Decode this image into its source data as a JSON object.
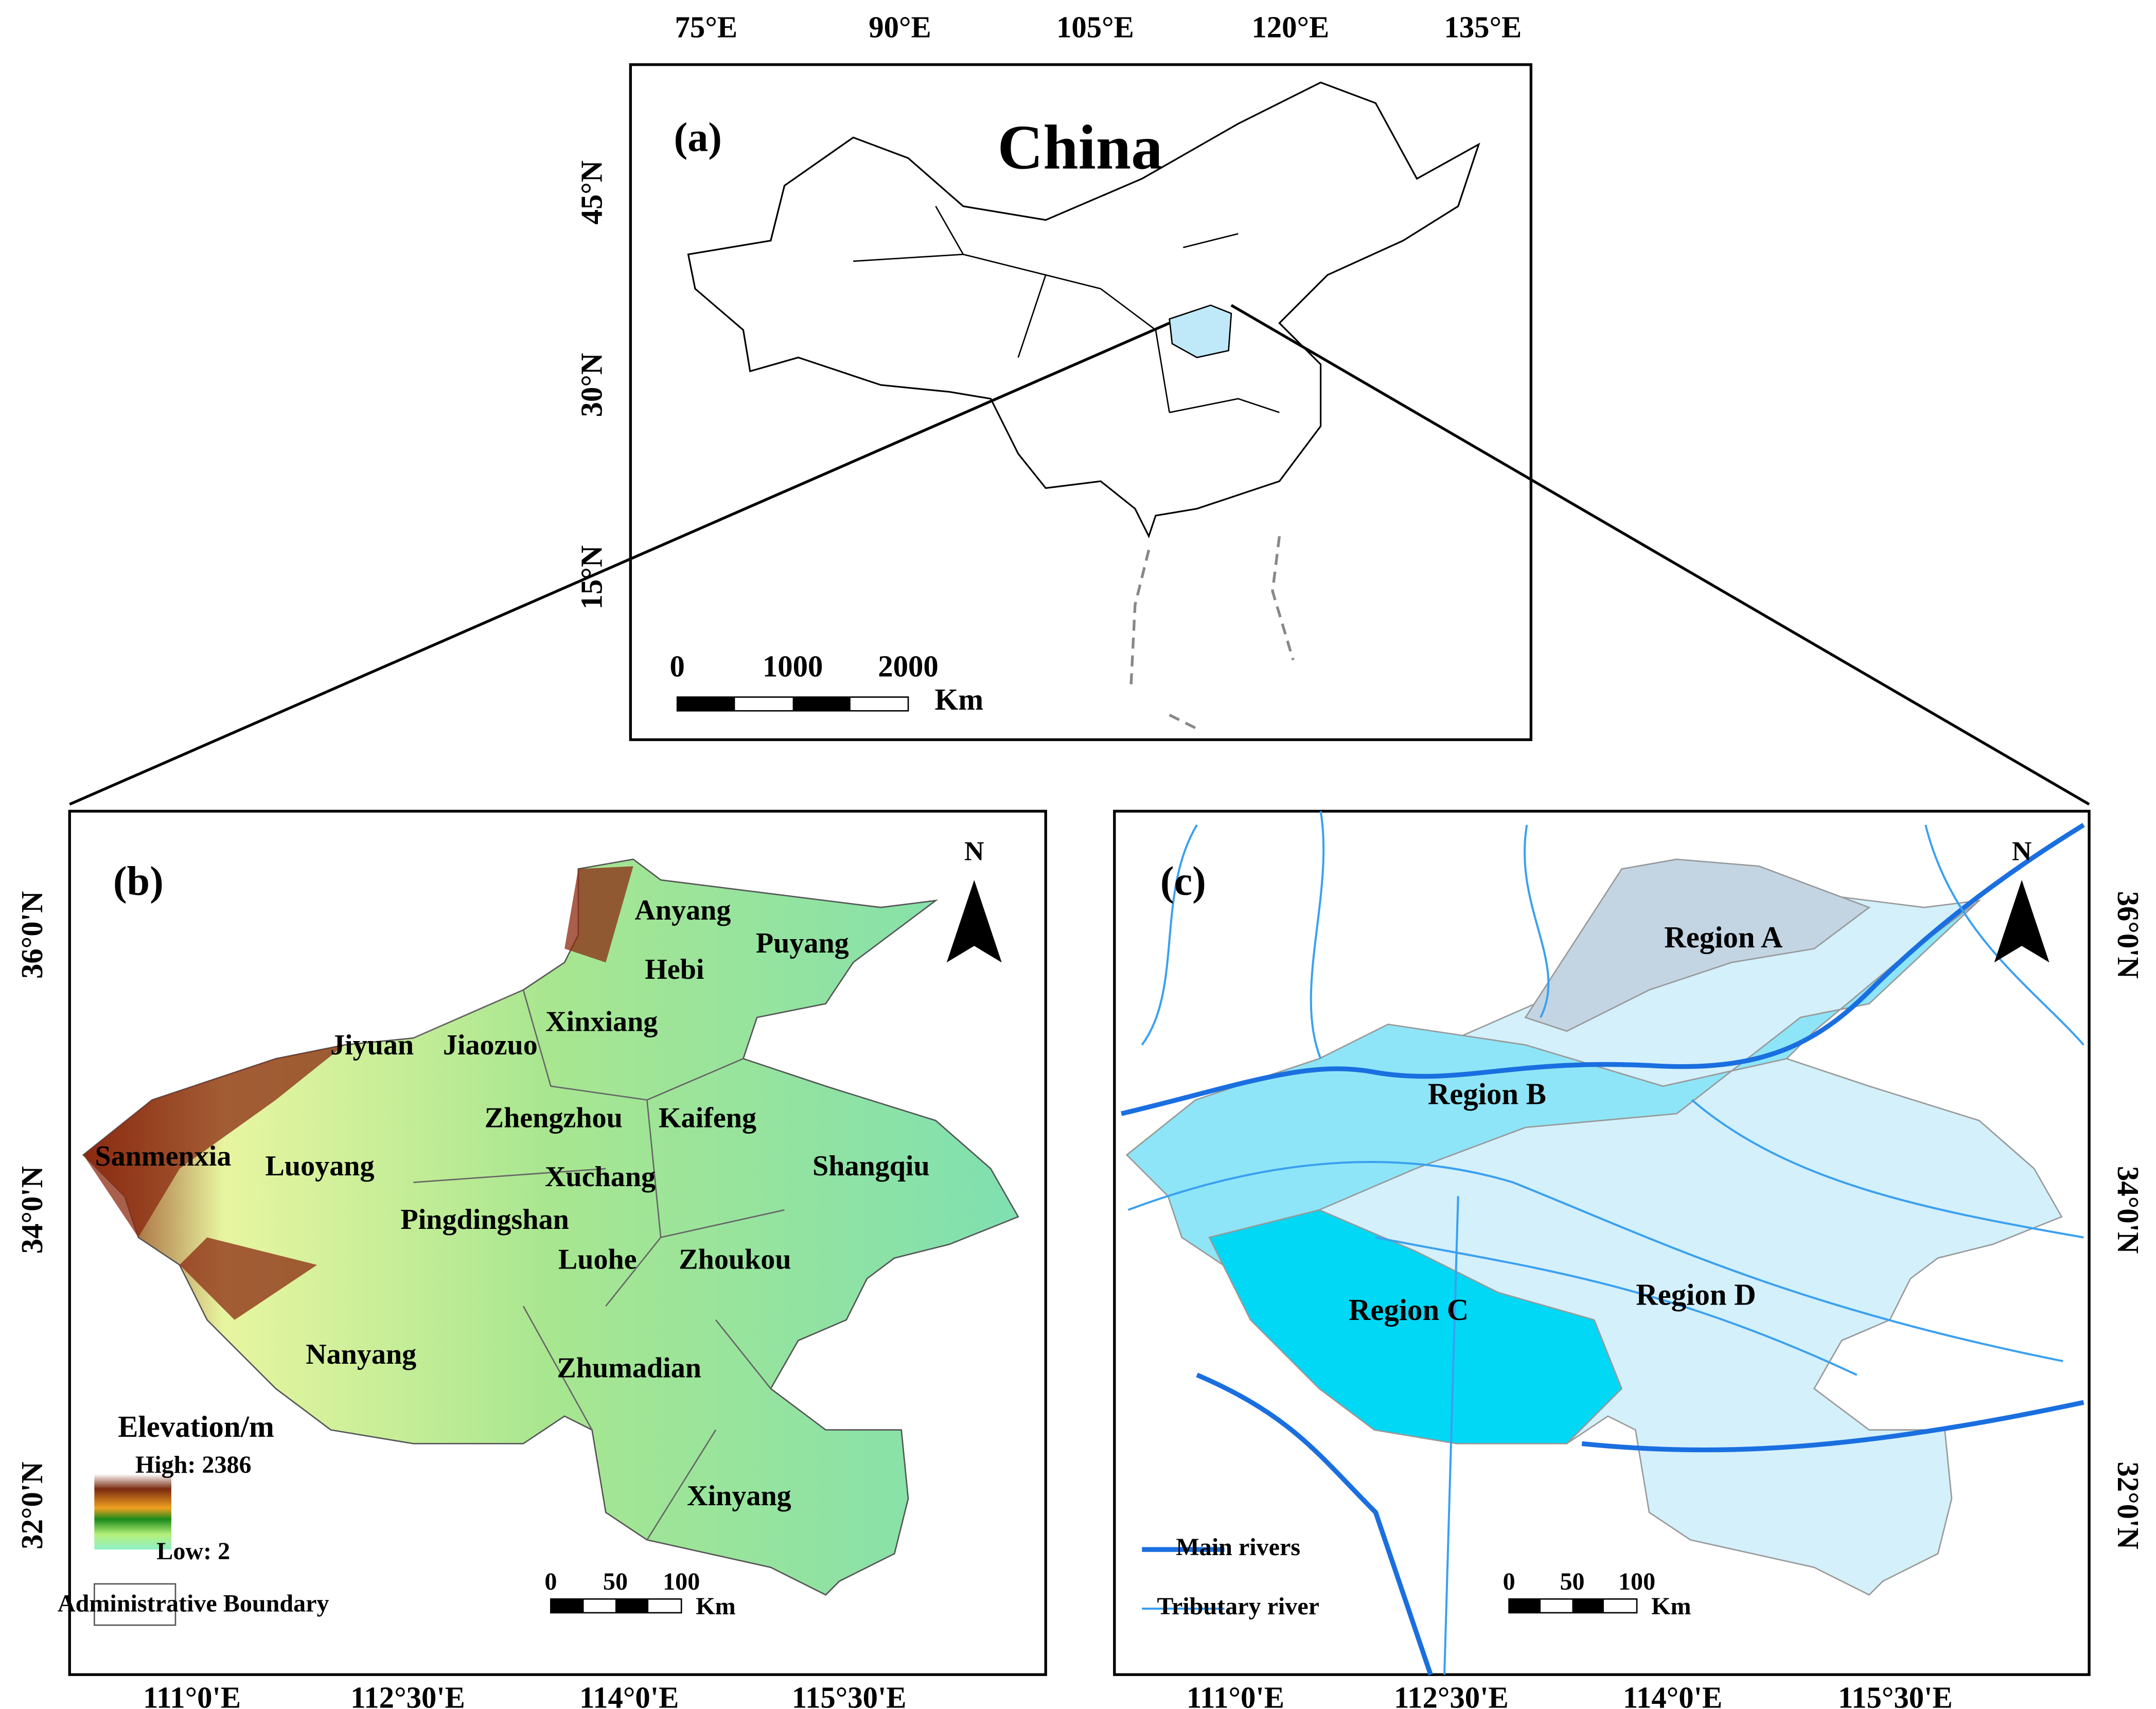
{
  "panel_a": {
    "label": "(a)",
    "title": "China",
    "lon_ticks": [
      "75°E",
      "90°E",
      "105°E",
      "120°E",
      "135°E"
    ],
    "lat_ticks": [
      "45°N",
      "30°N",
      "15°N"
    ],
    "scale_labels": [
      "0",
      "1000",
      "2000"
    ],
    "scale_unit": "Km"
  },
  "panel_b": {
    "label": "(b)",
    "north": "N",
    "cities": [
      "Anyang",
      "Puyang",
      "Hebi",
      "Xinxiang",
      "Jiyuan",
      "Jiaozuo",
      "Zhengzhou",
      "Kaifeng",
      "Sanmenxia",
      "Luoyang",
      "Xuchang",
      "Shangqiu",
      "Pingdingshan",
      "Luohe",
      "Zhoukou",
      "Nanyang",
      "Zhumadian",
      "Xinyang"
    ],
    "legend": {
      "title": "Elevation/m",
      "high": "High: 2386",
      "low": "Low: 2",
      "boundary": "Administrative Boundary"
    },
    "scale_labels": [
      "0",
      "50",
      "100"
    ],
    "scale_unit": "Km",
    "lon_ticks": [
      "111°0'E",
      "112°30'E",
      "114°0'E",
      "115°30'E"
    ],
    "lat_ticks": [
      "36°0'N",
      "34°0'N",
      "32°0'N"
    ]
  },
  "panel_c": {
    "label": "(c)",
    "north": "N",
    "regions": [
      "Region A",
      "Region B",
      "Region C",
      "Region D"
    ],
    "legend": {
      "main": "Main rivers",
      "tributary": "Tributary river"
    },
    "scale_labels": [
      "0",
      "50",
      "100"
    ],
    "scale_unit": "Km",
    "lon_ticks": [
      "111°0'E",
      "112°30'E",
      "114°0'E",
      "115°30'E"
    ],
    "lat_ticks": [
      "36°0'N",
      "34°0'N",
      "32°0'N"
    ]
  }
}
